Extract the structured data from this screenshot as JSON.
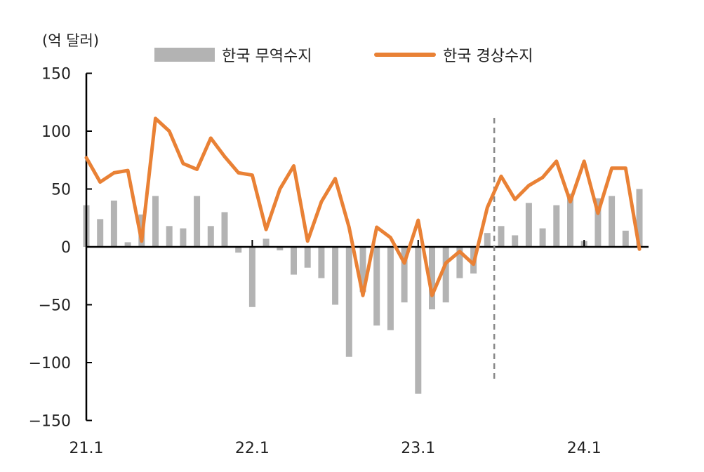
{
  "chart_data": {
    "type": "bar",
    "unit_label": "(억 달러)",
    "yticks": [
      150,
      100,
      50,
      0,
      -50,
      -100,
      -150
    ],
    "ylim": [
      -150,
      150
    ],
    "xtick_labels": [
      "21.1",
      "22.1",
      "23.1",
      "24.1"
    ],
    "x": [
      "21.1",
      "21.2",
      "21.3",
      "21.4",
      "21.5",
      "21.6",
      "21.7",
      "21.8",
      "21.9",
      "21.10",
      "21.11",
      "21.12",
      "22.1",
      "22.2",
      "22.3",
      "22.4",
      "22.5",
      "22.6",
      "22.7",
      "22.8",
      "22.9",
      "22.10",
      "22.11",
      "22.12",
      "23.1",
      "23.2",
      "23.3",
      "23.4",
      "23.5",
      "23.6",
      "23.7",
      "23.8",
      "23.9",
      "23.10",
      "23.11",
      "23.12",
      "24.1",
      "24.2",
      "24.3",
      "24.4",
      "24.5"
    ],
    "series": [
      {
        "name": "한국 무역수지",
        "kind": "bar",
        "color": "#b3b3b3",
        "values": [
          36,
          24,
          40,
          4,
          28,
          44,
          18,
          16,
          44,
          18,
          30,
          -5,
          -52,
          7,
          -3,
          -24,
          -18,
          -27,
          -50,
          -95,
          -39,
          -68,
          -72,
          -48,
          -127,
          -54,
          -48,
          -27,
          -23,
          12,
          18,
          10,
          38,
          16,
          36,
          46,
          5,
          42,
          44,
          14,
          50
        ]
      },
      {
        "name": "한국 경상수지",
        "kind": "line",
        "color": "#e98135",
        "values": [
          77,
          56,
          64,
          66,
          5,
          111,
          100,
          72,
          67,
          94,
          78,
          64,
          62,
          15,
          50,
          70,
          5,
          39,
          59,
          17,
          -42,
          17,
          8,
          -14,
          23,
          -42,
          -14,
          -4,
          -15,
          34,
          61,
          41,
          53,
          60,
          74,
          39,
          74,
          29,
          68,
          68,
          -2
        ]
      }
    ],
    "divider_after": "23.6",
    "colors": {
      "axis": "#000000",
      "divider": "#888888"
    }
  }
}
